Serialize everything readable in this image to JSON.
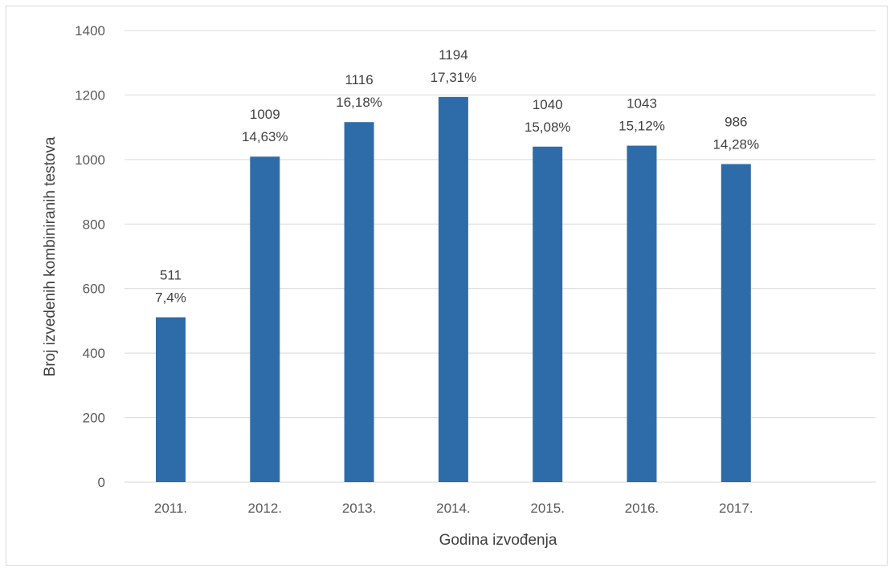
{
  "chart_data": {
    "type": "bar",
    "categories": [
      "2011.",
      "2012.",
      "2013.",
      "2014.",
      "2015.",
      "2016.",
      "2017."
    ],
    "values": [
      511,
      1009,
      1116,
      1194,
      1040,
      1043,
      986
    ],
    "percent_labels": [
      "7,4%",
      "14,63%",
      "16,18%",
      "17,31%",
      "15,08%",
      "15,12%",
      "14,28%"
    ],
    "value_labels": [
      "511",
      "1009",
      "1116",
      "1194",
      "1040",
      "1043",
      "986"
    ],
    "xlabel": "Godina izvođenja",
    "ylabel": "Broj izvedenih kombiniranih testova",
    "ylim": [
      0,
      1400
    ],
    "yticks": [
      0,
      200,
      400,
      600,
      800,
      1000,
      1200,
      1400
    ],
    "grid": true,
    "legend": "none",
    "colors": {
      "bar": "#2e6ca9",
      "grid": "#d9d9d9",
      "tick": "#595959",
      "label": "#404040"
    }
  }
}
